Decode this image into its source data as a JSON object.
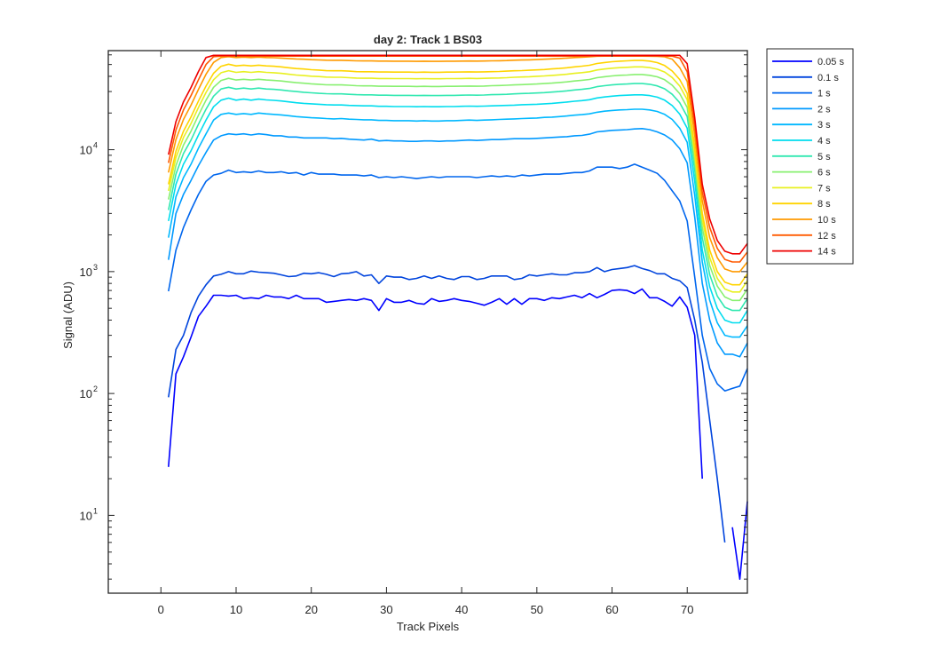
{
  "chart_data": {
    "type": "line",
    "title": "day 2: Track 1  BS03",
    "xlabel": "Track Pixels",
    "ylabel": "Signal (ADU)",
    "xlim": [
      -7,
      78
    ],
    "ylim": [
      2.3,
      65000
    ],
    "yscale": "log",
    "x_ticks": [
      0,
      10,
      20,
      30,
      40,
      50,
      60,
      70
    ],
    "y_ticks": [
      {
        "value": 10,
        "base": "10",
        "exp": "1"
      },
      {
        "value": 100,
        "base": "10",
        "exp": "2"
      },
      {
        "value": 1000,
        "base": "10",
        "exp": "3"
      },
      {
        "value": 10000,
        "base": "10",
        "exp": "4"
      }
    ],
    "grid": false,
    "legend_position": "outside-right",
    "x": [
      1,
      2,
      3,
      4,
      5,
      6,
      7,
      8,
      9,
      10,
      11,
      12,
      13,
      14,
      15,
      16,
      17,
      18,
      19,
      20,
      21,
      22,
      23,
      24,
      25,
      26,
      27,
      28,
      29,
      30,
      31,
      32,
      33,
      34,
      35,
      36,
      37,
      38,
      39,
      40,
      41,
      42,
      43,
      44,
      45,
      46,
      47,
      48,
      49,
      50,
      51,
      52,
      53,
      54,
      55,
      56,
      57,
      58,
      59,
      60,
      61,
      62,
      63,
      64,
      65,
      66,
      67,
      68,
      69,
      70,
      71,
      72,
      73,
      74,
      75,
      76,
      77,
      78
    ],
    "series": [
      {
        "name": "0.05 s",
        "color": "#0000ff",
        "values": [
          25,
          145,
          200,
          290,
          430,
          520,
          640,
          640,
          630,
          640,
          600,
          610,
          600,
          640,
          620,
          620,
          600,
          640,
          600,
          600,
          600,
          560,
          570,
          580,
          590,
          580,
          600,
          580,
          480,
          600,
          560,
          560,
          580,
          550,
          540,
          600,
          570,
          580,
          600,
          580,
          570,
          550,
          530,
          560,
          600,
          540,
          600,
          540,
          600,
          600,
          580,
          610,
          600,
          620,
          640,
          610,
          660,
          610,
          650,
          700,
          710,
          700,
          660,
          720,
          610,
          610,
          570,
          520,
          620,
          510,
          300,
          20,
          null,
          null,
          null,
          8,
          3,
          13
        ]
      },
      {
        "name": "0.1 s",
        "color": "#0044dd",
        "values": [
          93,
          230,
          300,
          460,
          630,
          780,
          920,
          950,
          1000,
          960,
          960,
          1010,
          990,
          980,
          970,
          940,
          910,
          920,
          970,
          960,
          980,
          950,
          910,
          960,
          970,
          1000,
          920,
          940,
          800,
          920,
          900,
          900,
          860,
          880,
          920,
          880,
          920,
          880,
          860,
          910,
          910,
          860,
          880,
          920,
          920,
          920,
          860,
          880,
          940,
          920,
          940,
          960,
          940,
          940,
          980,
          980,
          1000,
          1080,
          1000,
          1040,
          1060,
          1080,
          1120,
          1060,
          1020,
          960,
          960,
          880,
          840,
          740,
          400,
          180,
          60,
          20,
          6,
          null,
          null,
          null
        ]
      },
      {
        "name": "1 s",
        "color": "#0066ee",
        "values": [
          690,
          1500,
          2300,
          3200,
          4300,
          5500,
          6200,
          6400,
          6800,
          6500,
          6600,
          6500,
          6700,
          6500,
          6500,
          6600,
          6400,
          6500,
          6200,
          6500,
          6300,
          6300,
          6300,
          6200,
          6200,
          6200,
          6100,
          6200,
          5900,
          6000,
          5900,
          6000,
          5900,
          5800,
          5900,
          6000,
          5900,
          6000,
          6000,
          6000,
          6000,
          5900,
          6000,
          6100,
          6000,
          6100,
          6000,
          6200,
          6100,
          6200,
          6300,
          6300,
          6300,
          6400,
          6500,
          6500,
          6700,
          7200,
          7200,
          7200,
          7000,
          7200,
          7600,
          7200,
          6800,
          6400,
          5600,
          4600,
          3800,
          2600,
          900,
          300,
          160,
          120,
          105,
          110,
          115,
          160
        ]
      },
      {
        "name": "2 s",
        "color": "#0099ff",
        "values": [
          1250,
          3000,
          4300,
          5600,
          7400,
          9500,
          12000,
          13000,
          13500,
          13300,
          13500,
          13200,
          13500,
          13300,
          13000,
          13000,
          12700,
          12700,
          12500,
          12500,
          12500,
          12500,
          12300,
          12400,
          12200,
          12100,
          12000,
          12200,
          11800,
          11900,
          11800,
          11800,
          11700,
          11700,
          11800,
          11800,
          11700,
          11800,
          11800,
          11900,
          12000,
          11900,
          12000,
          12100,
          12100,
          12200,
          12300,
          12300,
          12300,
          12400,
          12500,
          12600,
          12700,
          12800,
          13000,
          13100,
          13400,
          14000,
          14200,
          14400,
          14500,
          14600,
          14800,
          14900,
          14600,
          14000,
          13200,
          12000,
          10200,
          7800,
          2800,
          800,
          400,
          260,
          210,
          210,
          200,
          260
        ]
      },
      {
        "name": "3 s",
        "color": "#00b8ff",
        "values": [
          1900,
          4100,
          5900,
          7600,
          10300,
          13500,
          17500,
          19500,
          20000,
          19500,
          19800,
          19500,
          20000,
          19700,
          19500,
          19300,
          19000,
          18700,
          18500,
          18300,
          18200,
          18000,
          17900,
          18000,
          17800,
          17700,
          17600,
          17600,
          17400,
          17400,
          17300,
          17300,
          17300,
          17200,
          17300,
          17200,
          17200,
          17300,
          17300,
          17400,
          17500,
          17400,
          17500,
          17600,
          17700,
          17800,
          17900,
          18000,
          18100,
          18200,
          18400,
          18500,
          18700,
          18900,
          19200,
          19400,
          19700,
          20300,
          20700,
          21000,
          21200,
          21300,
          21500,
          21500,
          21200,
          20600,
          19500,
          17700,
          15000,
          11500,
          4200,
          1200,
          580,
          380,
          300,
          290,
          290,
          360
        ]
      },
      {
        "name": "4 s",
        "color": "#00ddee",
        "values": [
          2600,
          5200,
          7600,
          9800,
          13200,
          17500,
          22500,
          25500,
          26500,
          25500,
          26000,
          25500,
          26000,
          25600,
          25400,
          25100,
          24700,
          24300,
          24000,
          23800,
          23600,
          23400,
          23300,
          23300,
          23100,
          23000,
          22900,
          22900,
          22700,
          22700,
          22600,
          22600,
          22600,
          22500,
          22600,
          22500,
          22500,
          22600,
          22600,
          22700,
          22800,
          22700,
          22800,
          22900,
          23000,
          23100,
          23200,
          23400,
          23500,
          23600,
          23800,
          24000,
          24300,
          24600,
          25000,
          25300,
          25700,
          26600,
          27100,
          27500,
          27800,
          28000,
          28200,
          28200,
          27800,
          27000,
          25500,
          23000,
          19600,
          15000,
          5500,
          1500,
          750,
          500,
          400,
          380,
          380,
          480
        ]
      },
      {
        "name": "5 s",
        "color": "#30e8b0",
        "values": [
          3200,
          6300,
          9300,
          12000,
          16200,
          21500,
          27500,
          31500,
          32500,
          31500,
          32000,
          31500,
          32000,
          31500,
          31300,
          30900,
          30400,
          30000,
          29600,
          29300,
          29000,
          28800,
          28700,
          28700,
          28500,
          28300,
          28200,
          28200,
          28000,
          28000,
          27900,
          27900,
          27900,
          27800,
          27900,
          27800,
          27800,
          27900,
          27900,
          28000,
          28100,
          28000,
          28100,
          28300,
          28400,
          28500,
          28700,
          28900,
          29000,
          29200,
          29400,
          29700,
          30000,
          30400,
          30900,
          31300,
          31800,
          32900,
          33500,
          34000,
          34400,
          34600,
          34900,
          34900,
          34400,
          33400,
          31600,
          28500,
          24300,
          18700,
          6800,
          1900,
          940,
          630,
          510,
          480,
          480,
          600
        ]
      },
      {
        "name": "6 s",
        "color": "#88f070",
        "values": [
          3900,
          7400,
          10900,
          14200,
          19200,
          25500,
          32500,
          37000,
          38500,
          37300,
          37800,
          37300,
          37800,
          37300,
          37000,
          36600,
          36000,
          35500,
          35100,
          34700,
          34400,
          34100,
          34000,
          34000,
          33800,
          33500,
          33400,
          33400,
          33200,
          33200,
          33100,
          33100,
          33100,
          33000,
          33100,
          33000,
          33000,
          33100,
          33100,
          33200,
          33300,
          33200,
          33300,
          33500,
          33600,
          33800,
          34000,
          34200,
          34400,
          34600,
          34900,
          35200,
          35600,
          36000,
          36600,
          37100,
          37700,
          39000,
          39700,
          40300,
          40800,
          41000,
          41400,
          41400,
          40800,
          39600,
          37500,
          33800,
          28800,
          22200,
          8000,
          2300,
          1120,
          760,
          620,
          580,
          580,
          720
        ]
      },
      {
        "name": "7 s",
        "color": "#e8f020",
        "values": [
          4600,
          8600,
          12600,
          16400,
          22200,
          29500,
          37500,
          42800,
          44500,
          43100,
          43700,
          43100,
          43700,
          43100,
          42800,
          42300,
          41600,
          41000,
          40600,
          40100,
          39800,
          39400,
          39300,
          39300,
          39000,
          38700,
          38600,
          38600,
          38400,
          38400,
          38300,
          38300,
          38300,
          38200,
          38300,
          38200,
          38200,
          38300,
          38300,
          38400,
          38500,
          38400,
          38500,
          38700,
          38800,
          39000,
          39300,
          39500,
          39700,
          40000,
          40300,
          40700,
          41100,
          41600,
          42300,
          42900,
          43600,
          45100,
          45900,
          46600,
          47100,
          47400,
          47800,
          47800,
          47200,
          45800,
          43400,
          39100,
          33300,
          25700,
          9300,
          2700,
          1300,
          880,
          720,
          680,
          680,
          840
        ]
      },
      {
        "name": "8 s",
        "color": "#ffd400",
        "values": [
          5200,
          9700,
          14200,
          18600,
          25100,
          33300,
          42400,
          48400,
          50300,
          48700,
          49400,
          48700,
          49400,
          48700,
          48400,
          47800,
          47000,
          46300,
          45900,
          45300,
          45000,
          44500,
          44400,
          44400,
          44100,
          43700,
          43600,
          43600,
          43400,
          43400,
          43300,
          43300,
          43300,
          43200,
          43300,
          43200,
          43200,
          43300,
          43300,
          43400,
          43500,
          43400,
          43500,
          43700,
          43800,
          44100,
          44400,
          44600,
          44900,
          45200,
          45500,
          46000,
          46400,
          47000,
          47800,
          48500,
          49300,
          51000,
          51900,
          52700,
          53200,
          53600,
          54000,
          54000,
          53300,
          51800,
          49000,
          44200,
          37600,
          29000,
          10500,
          3000,
          1500,
          1000,
          820,
          780,
          780,
          960
        ]
      },
      {
        "name": "10 s",
        "color": "#ff9a00",
        "values": [
          6500,
          12100,
          17700,
          23200,
          31300,
          41600,
          52000,
          57000,
          58000,
          57000,
          57500,
          57000,
          57500,
          57000,
          56800,
          56500,
          56000,
          55500,
          55200,
          54800,
          54500,
          54200,
          54100,
          54100,
          53900,
          53600,
          53500,
          53500,
          53300,
          53300,
          53200,
          53200,
          53200,
          53100,
          53200,
          53100,
          53100,
          53200,
          53200,
          53300,
          53400,
          53300,
          53400,
          53600,
          53700,
          53900,
          54200,
          54400,
          54600,
          54900,
          55200,
          55600,
          56000,
          56500,
          57000,
          57400,
          57800,
          58500,
          58600,
          58600,
          58600,
          58600,
          58600,
          58600,
          58500,
          58300,
          57800,
          55300,
          47000,
          36300,
          13100,
          3800,
          1900,
          1300,
          1050,
          1000,
          1000,
          1200
        ]
      },
      {
        "name": "12 s",
        "color": "#ff5a00",
        "values": [
          7800,
          14500,
          21200,
          27800,
          37500,
          50000,
          58000,
          58600,
          58600,
          58600,
          58600,
          58600,
          58600,
          58600,
          58600,
          58600,
          58600,
          58600,
          58600,
          58600,
          58600,
          58600,
          58600,
          58600,
          58600,
          58600,
          58600,
          58600,
          58600,
          58600,
          58600,
          58600,
          58600,
          58600,
          58600,
          58600,
          58600,
          58600,
          58600,
          58600,
          58600,
          58600,
          58600,
          58600,
          58600,
          58600,
          58600,
          58600,
          58600,
          58600,
          58600,
          58600,
          58600,
          58600,
          58600,
          58600,
          58600,
          58600,
          58600,
          58600,
          58600,
          58600,
          58600,
          58600,
          58600,
          58600,
          58600,
          58600,
          56400,
          43600,
          15700,
          4500,
          2300,
          1550,
          1260,
          1200,
          1200,
          1450
        ]
      },
      {
        "name": "14 s",
        "color": "#ee0000",
        "values": [
          9100,
          17000,
          24700,
          32400,
          43800,
          57000,
          59500,
          59500,
          59500,
          59500,
          59500,
          59500,
          59500,
          59500,
          59500,
          59500,
          59500,
          59500,
          59500,
          59500,
          59500,
          59500,
          59500,
          59500,
          59500,
          59500,
          59500,
          59500,
          59500,
          59500,
          59500,
          59500,
          59500,
          59500,
          59500,
          59500,
          59500,
          59500,
          59500,
          59500,
          59500,
          59500,
          59500,
          59500,
          59500,
          59500,
          59500,
          59500,
          59500,
          59500,
          59500,
          59500,
          59500,
          59500,
          59500,
          59500,
          59500,
          59500,
          59500,
          59500,
          59500,
          59500,
          59500,
          59500,
          59500,
          59500,
          59500,
          59500,
          59500,
          50800,
          18300,
          5200,
          2700,
          1800,
          1470,
          1400,
          1400,
          1700
        ]
      }
    ]
  }
}
